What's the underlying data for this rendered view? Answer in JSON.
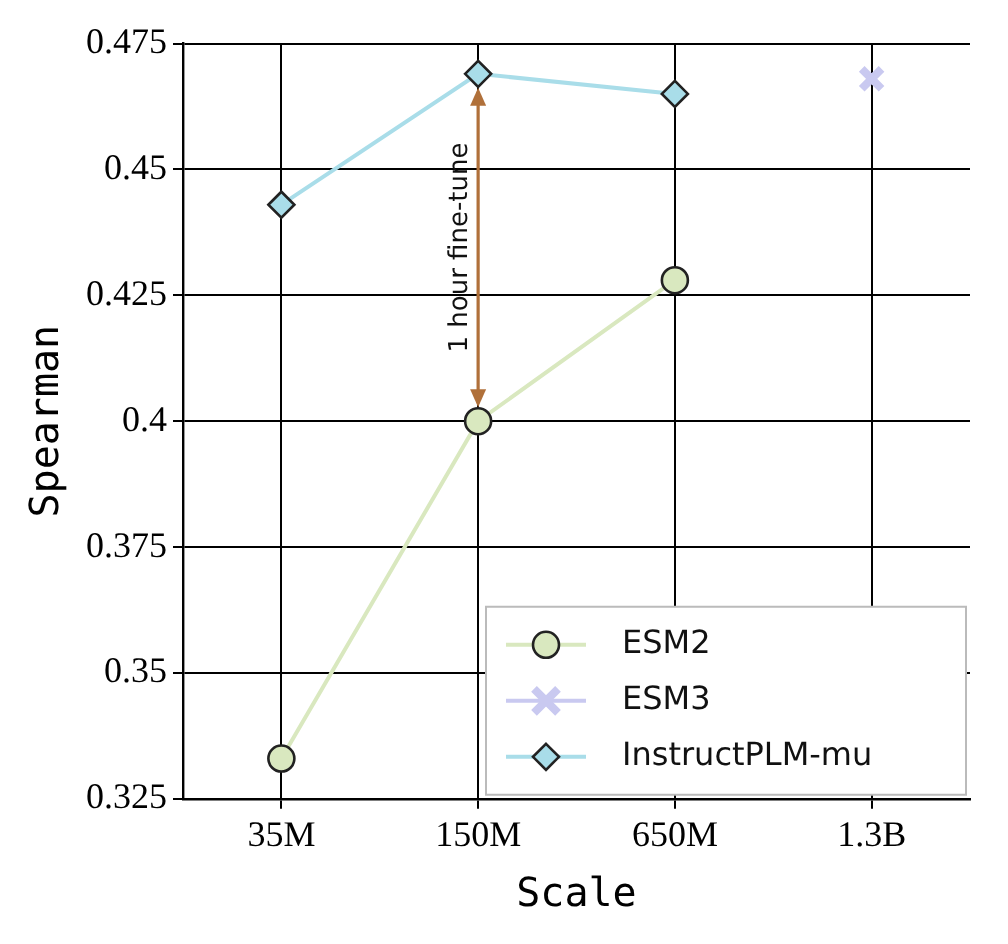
{
  "chart_data": {
    "type": "line",
    "xlabel": "Scale",
    "ylabel": "Spearman",
    "categories": [
      "35M",
      "150M",
      "650M",
      "1.3B"
    ],
    "series": [
      {
        "name": "ESM2",
        "color": "#d9e8bf",
        "marker": "circle",
        "values": [
          0.333,
          0.4,
          0.428,
          null
        ]
      },
      {
        "name": "ESM3",
        "color": "#c9c9f0",
        "marker": "cross",
        "values": [
          null,
          null,
          null,
          0.468
        ]
      },
      {
        "name": "InstructPLM-mu",
        "color": "#a9dde9",
        "marker": "diamond",
        "values": [
          0.443,
          0.469,
          0.465,
          null
        ]
      }
    ],
    "ylim": [
      0.325,
      0.475
    ],
    "yticks": [
      0.325,
      0.35,
      0.375,
      0.4,
      0.425,
      0.45,
      0.475
    ],
    "grid": true,
    "legend": "bottom right",
    "annotations": [
      "1 hour fine-tune"
    ]
  }
}
